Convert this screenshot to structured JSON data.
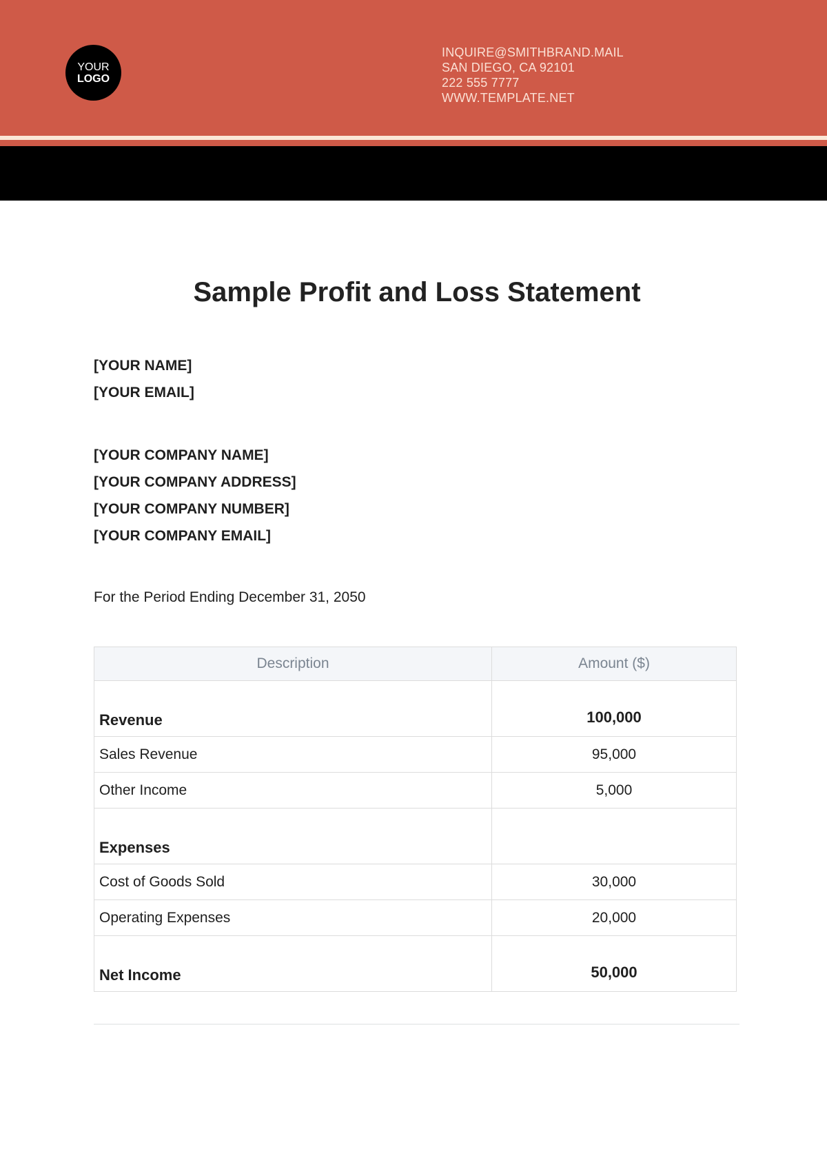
{
  "header": {
    "logo": {
      "line1": "YOUR",
      "line2": "LOGO"
    },
    "contact": [
      "INQUIRE@SMITHBRAND.MAIL",
      "SAN DIEGO, CA 92101",
      "222 555 7777",
      "WWW.TEMPLATE.NET"
    ],
    "colors": {
      "banner": "#cf5a48",
      "stripe": "#fbe6d6",
      "band": "#000000"
    }
  },
  "title": "Sample Profit and Loss Statement",
  "personal": [
    "[YOUR NAME]",
    "[YOUR EMAIL]"
  ],
  "company": [
    "[YOUR COMPANY NAME]",
    "[YOUR COMPANY ADDRESS]",
    "[YOUR COMPANY NUMBER]",
    "[YOUR COMPANY EMAIL]"
  ],
  "period": "For the Period Ending December 31, 2050",
  "table": {
    "headers": [
      "Description",
      "Amount ($)"
    ],
    "rows": [
      {
        "type": "sec",
        "desc": "Revenue",
        "amount": "100,000"
      },
      {
        "type": "item",
        "desc": "Sales Revenue",
        "amount": "95,000"
      },
      {
        "type": "item",
        "desc": "Other Income",
        "amount": "5,000"
      },
      {
        "type": "sec",
        "desc": "Expenses",
        "amount": ""
      },
      {
        "type": "item",
        "desc": "Cost of Goods Sold",
        "amount": "30,000"
      },
      {
        "type": "item",
        "desc": "Operating Expenses",
        "amount": "20,000"
      },
      {
        "type": "sec",
        "desc": "Net Income",
        "amount": "50,000"
      }
    ]
  }
}
